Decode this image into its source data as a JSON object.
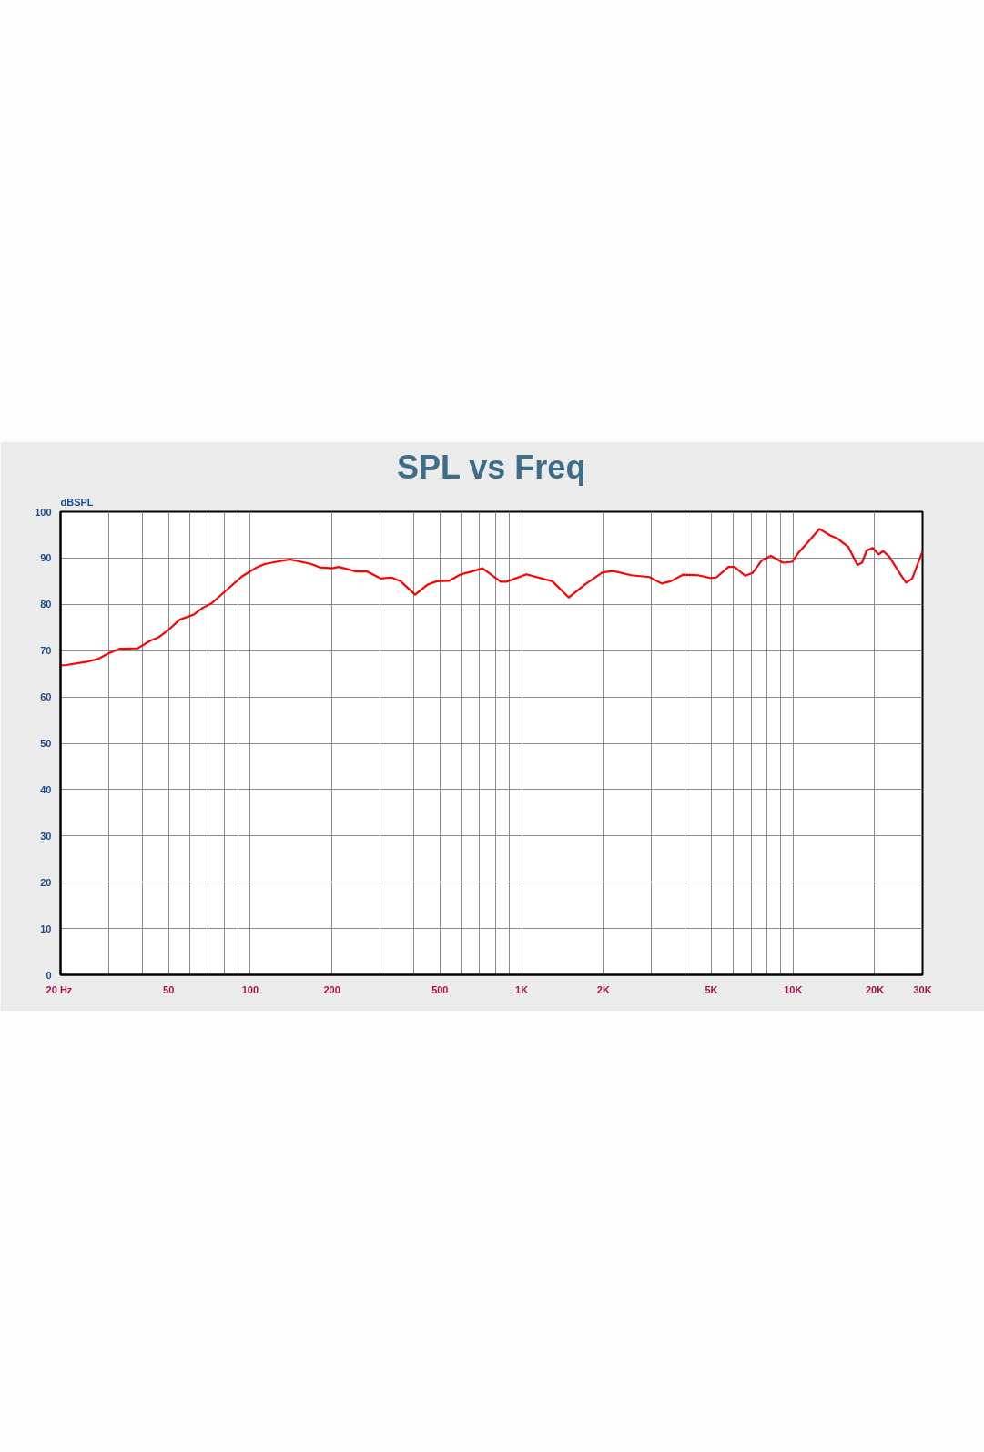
{
  "chart_data": {
    "type": "line",
    "title": "SPL vs Freq",
    "ylabel": "dBSPL",
    "log": "x",
    "grid": true,
    "line_style": "solid",
    "xlim": [
      20,
      30000
    ],
    "ylim": [
      0,
      100
    ],
    "xticks": [
      {
        "value": 20,
        "label": "20  Hz"
      },
      {
        "value": 30,
        "label": null
      },
      {
        "value": 40,
        "label": null
      },
      50,
      {
        "value": 60,
        "label": null
      },
      {
        "value": 70,
        "label": null
      },
      {
        "value": 80,
        "label": null
      },
      {
        "value": 90,
        "label": null
      },
      100,
      200,
      {
        "value": 300,
        "label": null
      },
      {
        "value": 400,
        "label": null
      },
      500,
      {
        "value": 600,
        "label": null
      },
      {
        "value": 700,
        "label": null
      },
      {
        "value": 800,
        "label": null
      },
      {
        "value": 900,
        "label": null
      },
      {
        "value": 1000,
        "label": "1K"
      },
      {
        "value": 2000,
        "label": "2K"
      },
      {
        "value": 3000,
        "label": null
      },
      {
        "value": 4000,
        "label": null
      },
      {
        "value": 5000,
        "label": "5K"
      },
      {
        "value": 6000,
        "label": null
      },
      {
        "value": 7000,
        "label": null
      },
      {
        "value": 8000,
        "label": null
      },
      {
        "value": 9000,
        "label": null
      },
      {
        "value": 10000,
        "label": "10K"
      },
      {
        "value": 20000,
        "label": "20K"
      },
      {
        "value": 30000,
        "label": "30K"
      }
    ],
    "yticks": [
      0,
      10,
      20,
      30,
      40,
      50,
      60,
      70,
      80,
      90,
      100
    ],
    "x": [
      20,
      21,
      25,
      27.5,
      30,
      33,
      38.5,
      43,
      46,
      50,
      55,
      62,
      67,
      72,
      84,
      93,
      105,
      113,
      125,
      140,
      154,
      168,
      180,
      200,
      212,
      245,
      270,
      302,
      331,
      358,
      405,
      451,
      487,
      541,
      592,
      664,
      718,
      837,
      880,
      1042,
      1297,
      1493,
      1721,
      1986,
      2173,
      2535,
      2959,
      3281,
      3541,
      3927,
      4467,
      4954,
      5215,
      5781,
      6085,
      6658,
      7101,
      7674,
      8285,
      9184,
      9927,
      10457,
      11300,
      12516,
      13700,
      14600,
      15990,
      17270,
      17950,
      18660,
      19640,
      20670,
      21480,
      22630,
      24780,
      26100,
      27490,
      30000
    ],
    "series": [
      {
        "color": "#ff0000",
        "values": [
          66.8,
          66.9,
          67.6,
          68.2,
          69.4,
          70.4,
          70.5,
          72.2,
          72.9,
          74.5,
          76.7,
          77.8,
          79.3,
          80.2,
          83.7,
          86,
          87.9,
          88.7,
          89.2,
          89.7,
          89.2,
          88.7,
          88,
          87.8,
          88.1,
          87.1,
          87.1,
          85.6,
          85.8,
          85,
          82.1,
          84.3,
          85,
          85.1,
          86.4,
          87.2,
          87.8,
          84.9,
          84.9,
          86.5,
          85,
          81.5,
          84.4,
          86.9,
          87.2,
          86.3,
          85.9,
          84.5,
          85,
          86.4,
          86.3,
          85.7,
          85.8,
          88.1,
          88.1,
          86.2,
          86.8,
          89.5,
          90.5,
          89,
          89.2,
          91.1,
          93.3,
          96.3,
          94.9,
          94.2,
          92.4,
          88.5,
          89,
          91.6,
          92.2,
          90.8,
          91.5,
          90.3,
          86.6,
          84.7,
          85.6,
          91.5
        ]
      }
    ]
  }
}
